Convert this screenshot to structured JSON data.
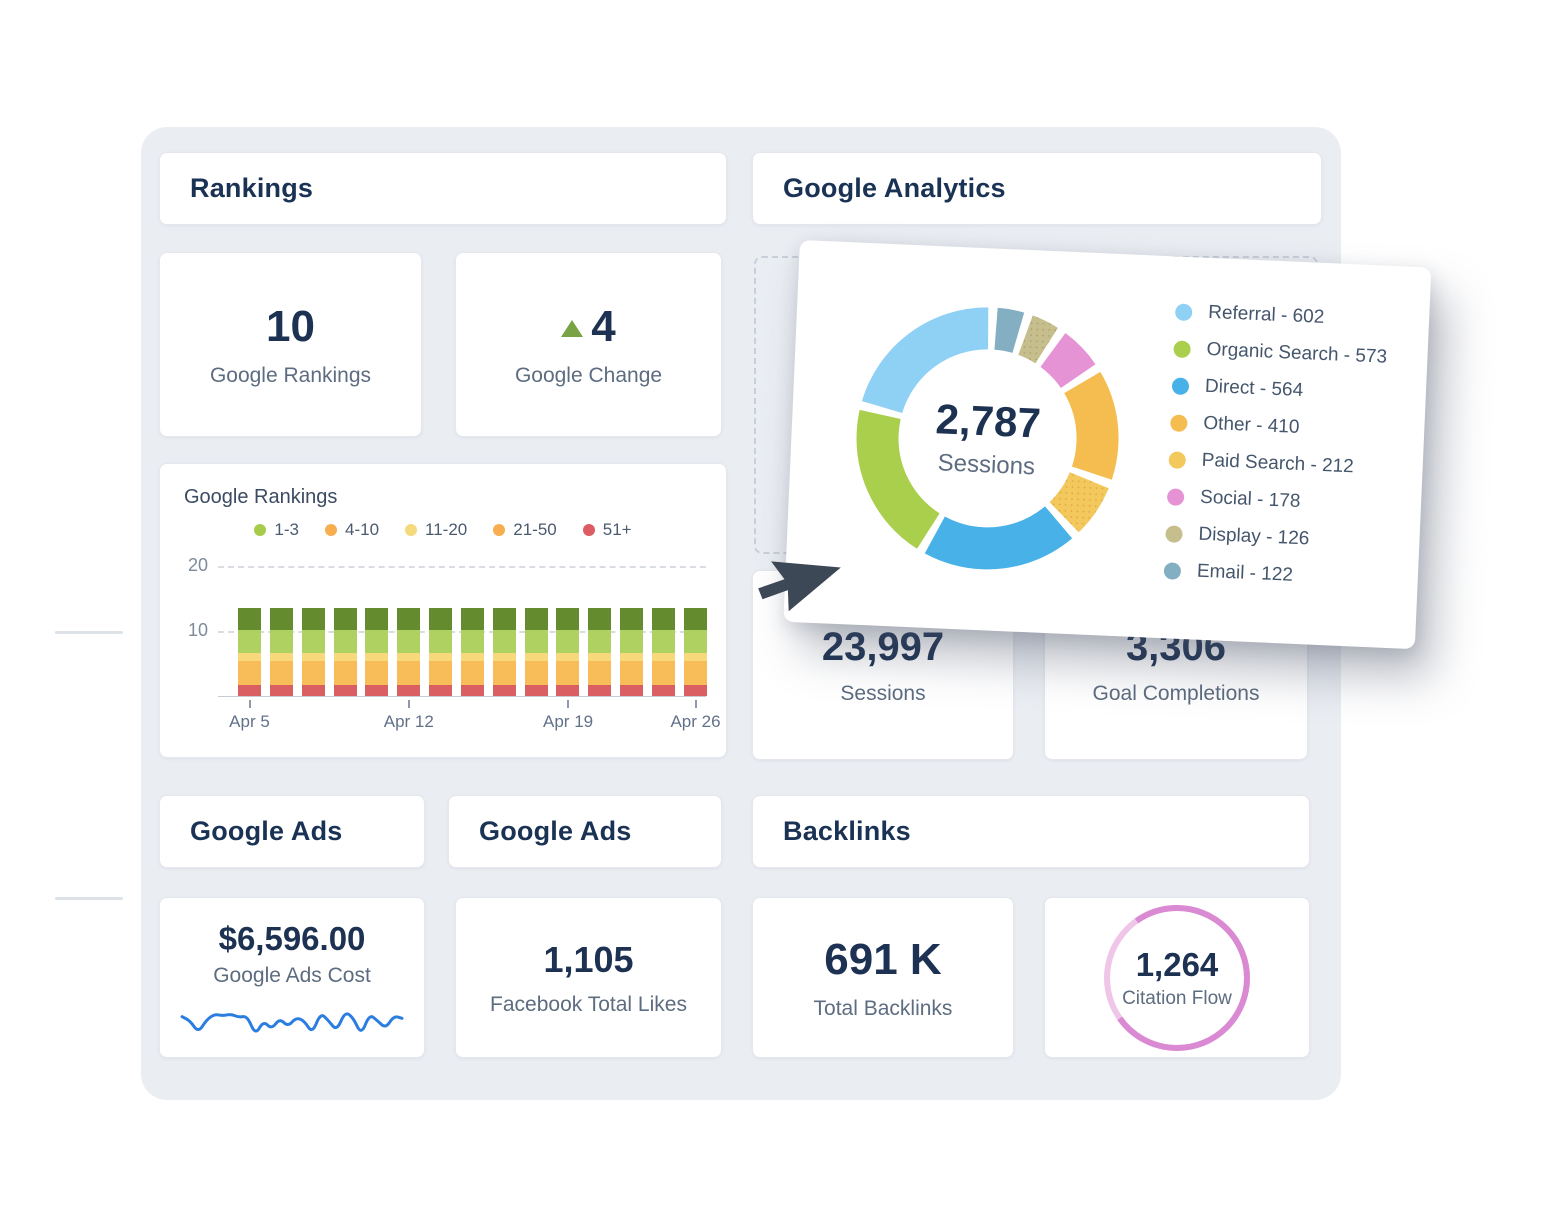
{
  "colors": {
    "page_bg": "#ffffff",
    "panel_bg": "#eaedf2",
    "card_border": "#e4e7ed",
    "heading_text": "#1a3254",
    "value_text": "#1d3252",
    "label_text": "#5d6c80",
    "trend_up_green": "#7aa344",
    "cursor": "#3d4856",
    "sparkline_blue": "#2b7de0",
    "citation_ring": "#da8ad2",
    "citation_ring_light": "#f0c6e8"
  },
  "rankings_section": {
    "title": "Rankings",
    "google_rankings_card": {
      "value": "10",
      "label": "Google Rankings"
    },
    "google_change_card": {
      "value": "4",
      "label": "Google Change",
      "trend": "up"
    }
  },
  "analytics_section": {
    "title": "Google Analytics",
    "sessions_card": {
      "value": "23,997",
      "label": "Sessions"
    },
    "goal_completions_card": {
      "value": "3,306",
      "label": "Goal Completions"
    }
  },
  "google_ads_section": {
    "title_left": "Google Ads",
    "title_right": "Google Ads",
    "ads_cost_card": {
      "value": "$6,596.00",
      "label": "Google Ads Cost"
    },
    "facebook_likes_card": {
      "value": "1,105",
      "label": "Facebook Total Likes"
    }
  },
  "backlinks_section": {
    "title": "Backlinks",
    "total_backlinks_card": {
      "value": "691 K",
      "label": "Total Backlinks"
    },
    "citation_flow_card": {
      "value": "1,264",
      "label": "Citation Flow"
    }
  },
  "chart_data": [
    {
      "id": "google-rankings-bar-chart",
      "type": "bar",
      "stacked": true,
      "title": "Google Rankings",
      "ylim": [
        0,
        21.5
      ],
      "yticks": [
        10,
        20
      ],
      "grid": "dashed-horizontal",
      "legend_position": "top",
      "bar_count": 15,
      "x_tick_labels": [
        "Apr 5",
        "Apr 12",
        "Apr 19",
        "Apr 26"
      ],
      "x_tick_bar_indexes": [
        0,
        5,
        10,
        14
      ],
      "legend": [
        {
          "label": "1-3",
          "color": "#a6cc49"
        },
        {
          "label": "4-10",
          "color": "#f6ae4f"
        },
        {
          "label": "11-20",
          "color": "#f5d97d"
        },
        {
          "label": "21-50",
          "color": "#f6ae4f"
        },
        {
          "label": "51+",
          "color": "#dd5c63"
        }
      ],
      "series": [
        {
          "name": "51+",
          "color": "#d95f62",
          "values": [
            1.65,
            1.65,
            1.65,
            1.65,
            1.65,
            1.65,
            1.65,
            1.65,
            1.65,
            1.65,
            1.65,
            1.65,
            1.65,
            1.65,
            1.65
          ]
        },
        {
          "name": "21-50",
          "color": "#f8bd59",
          "values": [
            3.7,
            3.7,
            3.7,
            3.7,
            3.7,
            3.7,
            3.7,
            3.7,
            3.7,
            3.7,
            3.7,
            3.7,
            3.7,
            3.7,
            3.7
          ]
        },
        {
          "name": "11-20",
          "color": "#f7d97c",
          "values": [
            1.3,
            1.3,
            1.3,
            1.3,
            1.3,
            1.3,
            1.3,
            1.3,
            1.3,
            1.3,
            1.3,
            1.3,
            1.3,
            1.3,
            1.3
          ]
        },
        {
          "name": "4-10",
          "color": "#aed162",
          "values": [
            3.5,
            3.5,
            3.5,
            3.5,
            3.5,
            3.5,
            3.5,
            3.5,
            3.5,
            3.5,
            3.5,
            3.5,
            3.5,
            3.5,
            3.5
          ]
        },
        {
          "name": "1-3",
          "color": "#648c2e",
          "values": [
            3.35,
            3.35,
            3.35,
            3.35,
            3.35,
            3.35,
            3.35,
            3.35,
            3.35,
            3.35,
            3.35,
            3.35,
            3.35,
            3.35,
            3.35
          ]
        }
      ]
    },
    {
      "id": "traffic-sources-donut",
      "type": "pie",
      "total_value": "2,787",
      "total_label": "Sessions",
      "legend_position": "right",
      "segments": [
        {
          "label": "Referral",
          "value": 602,
          "color": "#8fd0f5",
          "display": "Referral - 602"
        },
        {
          "label": "Organic Search",
          "value": 573,
          "color": "#a9cf4d",
          "display": "Organic Search - 573"
        },
        {
          "label": "Direct",
          "value": 564,
          "color": "#47b1e8",
          "display": "Direct - 564"
        },
        {
          "label": "Other",
          "value": 410,
          "color": "#f5bd4f",
          "display": "Other - 410"
        },
        {
          "label": "Paid Search",
          "value": 212,
          "color": "#f3c85c",
          "pattern": "dots",
          "display": "Paid Search - 212"
        },
        {
          "label": "Social",
          "value": 178,
          "color": "#e593d4",
          "display": "Social - 178"
        },
        {
          "label": "Display",
          "value": 126,
          "color": "#c7be8e",
          "pattern": "dots",
          "display": "Display - 126"
        },
        {
          "label": "Email",
          "value": 122,
          "color": "#84aec2",
          "display": "Email - 122"
        }
      ],
      "draw_order_clockwise_from_top": [
        "Email",
        "Display",
        "Social",
        "Other",
        "Paid Search",
        "Direct",
        "Organic Search",
        "Referral"
      ]
    },
    {
      "id": "google-ads-cost-sparkline",
      "type": "line",
      "color": "#2b7de0",
      "values": [
        0.42,
        0.52,
        0.8,
        0.5,
        0.36,
        0.4,
        0.36,
        0.44,
        0.4,
        0.86,
        0.52,
        0.72,
        0.46,
        0.66,
        0.44,
        0.52,
        0.82,
        0.33,
        0.52,
        0.76,
        0.3,
        0.44,
        0.86,
        0.36,
        0.52,
        0.7,
        0.4,
        0.46
      ]
    }
  ]
}
